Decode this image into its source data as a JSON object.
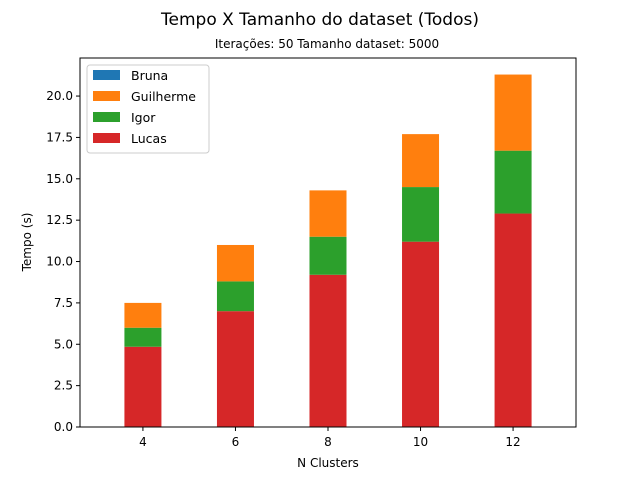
{
  "chart_data": {
    "type": "bar",
    "stacked": true,
    "title": "Tempo X Tamanho do dataset (Todos)",
    "subtitle": "Iterações: 50 Tamanho dataset: 5000",
    "xlabel": "N Clusters",
    "ylabel": "Tempo (s)",
    "categories": [
      "4",
      "6",
      "8",
      "10",
      "12"
    ],
    "ylim": [
      0,
      22.3
    ],
    "yticks": [
      0.0,
      2.5,
      5.0,
      7.5,
      10.0,
      12.5,
      15.0,
      17.5,
      20.0
    ],
    "ytick_labels": [
      "0.0",
      "2.5",
      "5.0",
      "7.5",
      "10.0",
      "12.5",
      "15.0",
      "17.5",
      "20.0"
    ],
    "grid": false,
    "legend_position": "top-left",
    "series": [
      {
        "name": "Bruna",
        "color": "#1f77b4",
        "values": [
          0,
          0,
          0,
          0,
          0
        ]
      },
      {
        "name": "Guilherme",
        "color": "#ff7f0e",
        "values": [
          1.5,
          2.2,
          2.8,
          3.2,
          4.6
        ]
      },
      {
        "name": "Igor",
        "color": "#2ca02c",
        "values": [
          1.15,
          1.8,
          2.3,
          3.3,
          3.8
        ]
      },
      {
        "name": "Lucas",
        "color": "#d62728",
        "values": [
          4.85,
          7.0,
          9.2,
          11.2,
          12.9
        ]
      }
    ],
    "stack_order": [
      "Lucas",
      "Igor",
      "Guilherme",
      "Bruna"
    ]
  }
}
